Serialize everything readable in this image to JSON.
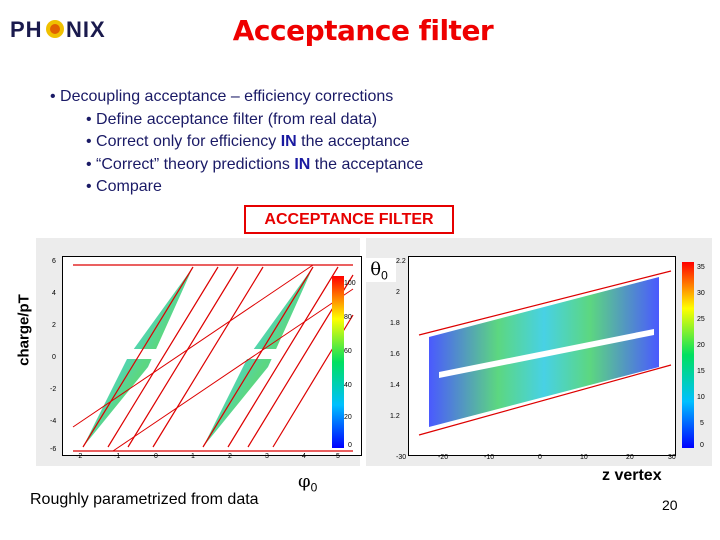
{
  "header": {
    "logo_text": "PHENIX",
    "title": "Acceptance filter"
  },
  "bullets": [
    {
      "prefix": "• ",
      "pre": "Decoupling acceptance – efficiency corrections",
      "bold": "",
      "post": ""
    },
    {
      "prefix": "• ",
      "pre": "Define acceptance filter (from real data)",
      "bold": "",
      "post": ""
    },
    {
      "prefix": "• ",
      "pre": "Correct only for efficiency ",
      "bold": "IN",
      "post": " the acceptance"
    },
    {
      "prefix": "• ",
      "pre": "“Correct” theory predictions ",
      "bold": "IN",
      "post": " the acceptance"
    },
    {
      "prefix": "• ",
      "pre": "Compare",
      "bold": "",
      "post": ""
    }
  ],
  "acceptance_box_label": "ACCEPTANCE FILTER",
  "left_plot": {
    "ylabel": "charge/pT",
    "x_symbol": "φ",
    "x_subscript": "0",
    "x_ticks": [
      "-2",
      "-1",
      "0",
      "1",
      "2",
      "3",
      "4",
      "5"
    ],
    "y_ticks": [
      "6",
      "4",
      "2",
      "0",
      "-2",
      "-4",
      "-6"
    ],
    "colorbar_ticks": [
      "100",
      "80",
      "60",
      "40",
      "20",
      "0"
    ]
  },
  "right_plot": {
    "y_symbol": "θ",
    "y_subscript": "0",
    "xlabel": "z vertex",
    "x_ticks": [
      "-30",
      "-20",
      "-10",
      "0",
      "10",
      "20",
      "30"
    ],
    "y_ticks": [
      "2.2",
      "2",
      "1.8",
      "1.6",
      "1.4",
      "1.2"
    ],
    "colorbar_ticks": [
      "35",
      "30",
      "25",
      "20",
      "15",
      "10",
      "5",
      "0"
    ]
  },
  "caption": "Roughly parametrized from data",
  "page_number": "20",
  "colors": {
    "title": "#ee0000",
    "bullet_text": "#1a1a66",
    "box_border": "#e60000",
    "cut_lines": "#dd0000"
  }
}
